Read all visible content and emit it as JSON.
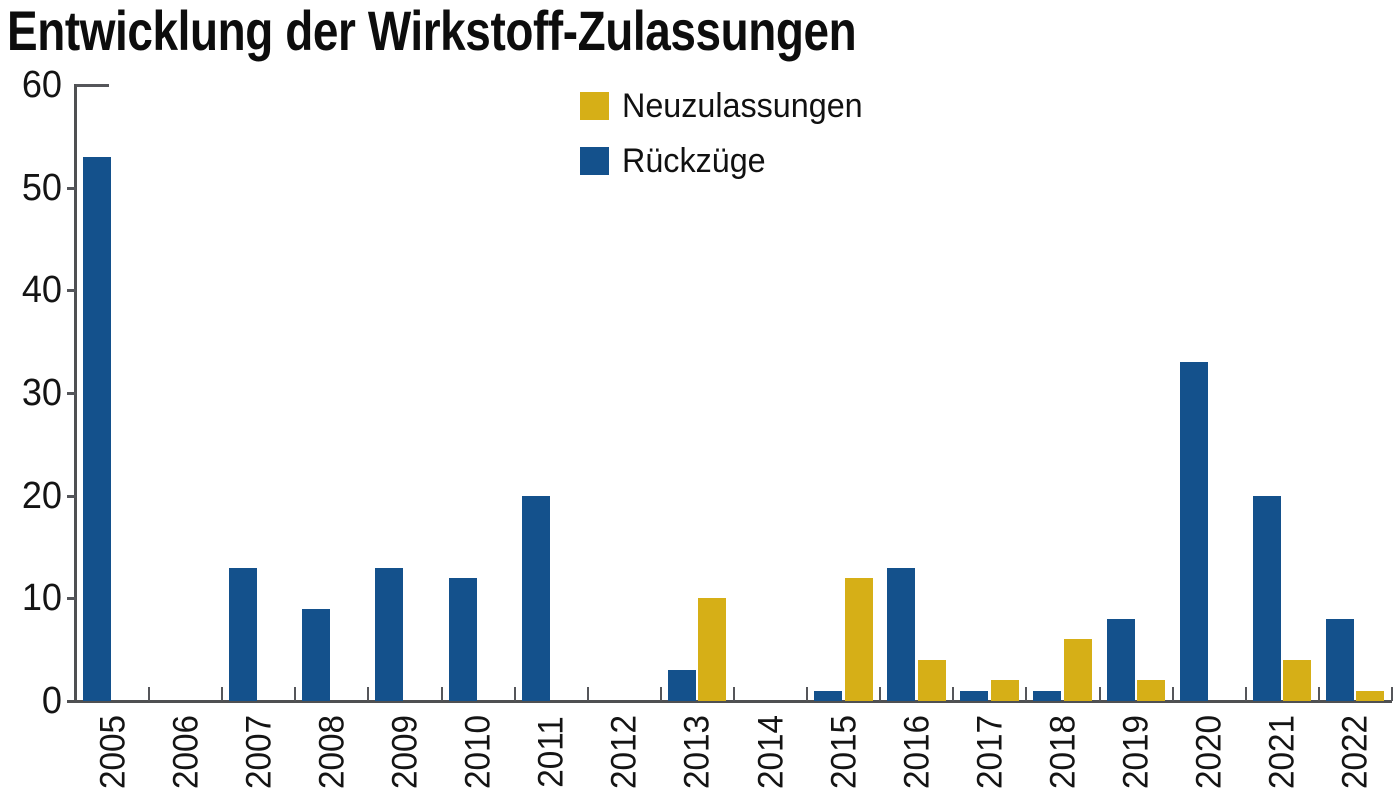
{
  "title": "Entwicklung der Wirkstoff-Zulassungen",
  "legend": {
    "items": [
      {
        "label": "Neuzulassungen",
        "color": "#D6AF17"
      },
      {
        "label": "Rückzüge",
        "color": "#14518C"
      }
    ]
  },
  "colors": {
    "neuzulassungen": "#D6AF17",
    "rueckzuege": "#14518C",
    "axis": "#4f5052",
    "text": "#141414",
    "background": "#ffffff"
  },
  "chart_data": {
    "type": "bar",
    "title": "Entwicklung der Wirkstoff-Zulassungen",
    "categories": [
      "2005",
      "2006",
      "2007",
      "2008",
      "2009",
      "2010",
      "2011",
      "2012",
      "2013",
      "2014",
      "2015",
      "2016",
      "2017",
      "2018",
      "2019",
      "2020",
      "2021",
      "2022"
    ],
    "series": [
      {
        "name": "Rückzüge",
        "color": "#14518C",
        "values": [
          53,
          0,
          13,
          9,
          13,
          12,
          20,
          0,
          3,
          0,
          1,
          13,
          1,
          1,
          8,
          33,
          20,
          8
        ]
      },
      {
        "name": "Neuzulassungen",
        "color": "#D6AF17",
        "values": [
          0,
          0,
          0,
          0,
          0,
          0,
          0,
          0,
          10,
          0,
          12,
          4,
          2,
          6,
          2,
          0,
          4,
          1
        ]
      }
    ],
    "xlabel": "",
    "ylabel": "",
    "ylim": [
      0,
      60
    ],
    "yticks": [
      0,
      10,
      20,
      30,
      40,
      50,
      60
    ],
    "grid": false,
    "legend_position": "top-center",
    "x_tick_label_rotation": -90,
    "bar_layout": "grouped"
  }
}
